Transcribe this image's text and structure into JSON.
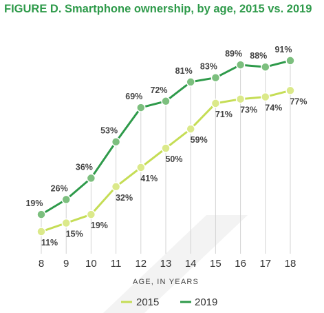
{
  "title": "FIGURE D. Smartphone ownership, by age, 2015 vs. 2019",
  "chart_data": {
    "type": "line",
    "title": "FIGURE D. Smartphone ownership, by age, 2015 vs. 2019",
    "xlabel": "AGE, IN YEARS",
    "ylabel": "",
    "x": [
      8,
      9,
      10,
      11,
      12,
      13,
      14,
      15,
      16,
      17,
      18
    ],
    "x_tick_labels": [
      "8",
      "9",
      "10",
      "11",
      "12",
      "13",
      "14",
      "15",
      "16",
      "17",
      "18"
    ],
    "ylim": [
      0,
      100
    ],
    "value_suffix": "%",
    "grid": false,
    "legend_position": "bottom-center",
    "series": [
      {
        "name": "2015",
        "values": [
          11,
          15,
          19,
          32,
          41,
          50,
          59,
          71,
          73,
          74,
          77
        ],
        "color": "#c5dd55"
      },
      {
        "name": "2019",
        "values": [
          19,
          26,
          36,
          53,
          69,
          72,
          81,
          83,
          89,
          88,
          91
        ],
        "color": "#2e9a4a"
      }
    ]
  }
}
